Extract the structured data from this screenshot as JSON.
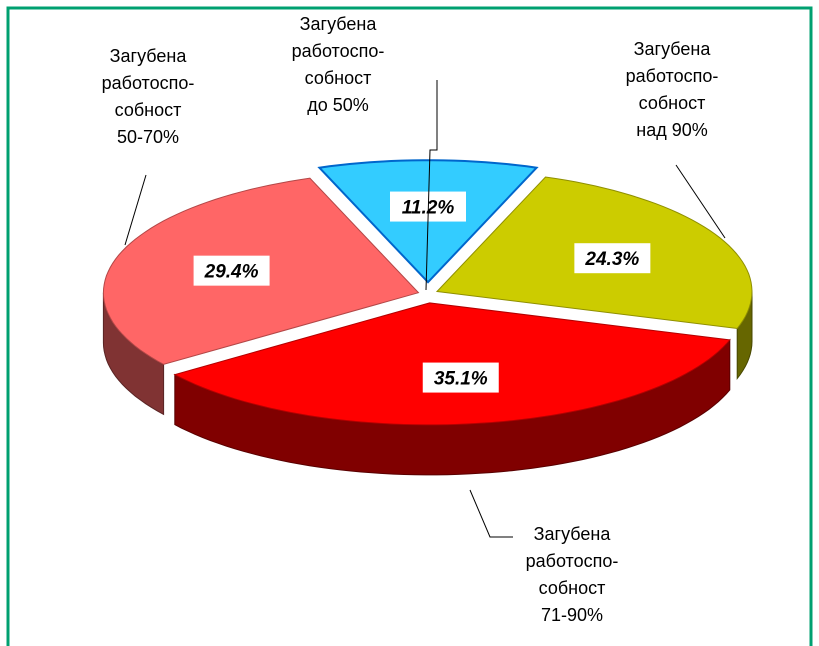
{
  "chart_data": {
    "type": "pie3d",
    "categories": [
      "Загубена\nработоспо-\nсобност\nдо 50%",
      "Загубена\nработоспо-\nсобност\nнад 90%",
      "Загубена\nработоспо-\nсобност\n71-90%",
      "Загубена\nработоспо-\nсобност\n50-70%"
    ],
    "values": [
      11.2,
      24.3,
      35.1,
      29.4
    ],
    "value_labels": [
      "11.2%",
      "24.3%",
      "35.1%",
      "29.4%"
    ],
    "colors": [
      "#33ccff",
      "#cccc00",
      "#ff0000",
      "#ff6666"
    ]
  }
}
